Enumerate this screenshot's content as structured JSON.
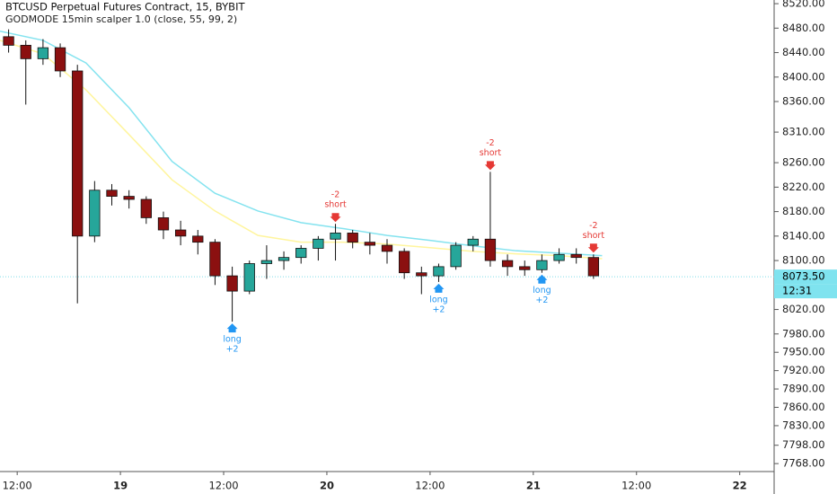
{
  "chart_data": {
    "type": "candlestick",
    "title": "BTCUSD Perpetual Futures Contract, 15, BYBIT",
    "subtitle": "GODMODE 15min scalper 1.0  (close, 55, 99, 2)",
    "up_color": "#26a69a",
    "down_color": "#8b1010",
    "x": [
      11,
      13,
      15,
      17,
      19,
      21,
      23,
      25,
      27,
      29,
      31,
      33,
      35,
      37,
      39,
      41,
      43,
      45,
      47,
      49,
      51,
      53,
      55,
      57,
      59,
      61,
      63,
      65,
      67,
      69,
      71,
      73,
      75,
      77,
      79
    ],
    "open": [
      8466,
      8452,
      8430,
      8448,
      8410,
      8140,
      8215,
      8205,
      8200,
      8170,
      8150,
      8140,
      8130,
      8075,
      8050,
      8095,
      8100,
      8105,
      8120,
      8135,
      8145,
      8130,
      8125,
      8115,
      8080,
      8075,
      8090,
      8125,
      8135,
      8100,
      8090,
      8085,
      8100,
      8110,
      8105
    ],
    "high": [
      8478,
      8460,
      8462,
      8455,
      8420,
      8230,
      8225,
      8215,
      8205,
      8180,
      8165,
      8150,
      8135,
      8090,
      8100,
      8125,
      8115,
      8125,
      8140,
      8160,
      8150,
      8145,
      8135,
      8120,
      8090,
      8095,
      8130,
      8140,
      8245,
      8110,
      8100,
      8110,
      8120,
      8120,
      8110
    ],
    "low": [
      8440,
      8355,
      8420,
      8400,
      8030,
      8130,
      8190,
      8185,
      8160,
      8135,
      8125,
      8110,
      8060,
      8000,
      8045,
      8070,
      8085,
      8095,
      8100,
      8100,
      8120,
      8110,
      8095,
      8070,
      8045,
      8065,
      8085,
      8115,
      8090,
      8075,
      8075,
      8080,
      8095,
      8095,
      8070
    ],
    "close": [
      8452,
      8430,
      8448,
      8410,
      8140,
      8215,
      8205,
      8200,
      8170,
      8150,
      8140,
      8130,
      8075,
      8050,
      8095,
      8100,
      8105,
      8120,
      8135,
      8145,
      8130,
      8125,
      8115,
      8080,
      8075,
      8090,
      8125,
      8135,
      8100,
      8090,
      8085,
      8100,
      8110,
      8105,
      8075
    ],
    "series": [
      {
        "color": "#84e3ef",
        "x": [
          10,
          15,
          20,
          25,
          30,
          35,
          40,
          45,
          50,
          55,
          60,
          65,
          70,
          75,
          80
        ],
        "values": [
          8475,
          8460,
          8423,
          8350,
          8262,
          8210,
          8181,
          8162,
          8152,
          8141,
          8133,
          8124,
          8116,
          8112,
          8108
        ]
      },
      {
        "color": "#fff59d",
        "x": [
          10,
          15,
          20,
          25,
          30,
          35,
          40,
          45,
          50,
          55,
          60,
          65,
          70,
          75,
          80
        ],
        "values": [
          8460,
          8438,
          8379,
          8306,
          8232,
          8181,
          8141,
          8130,
          8130,
          8127,
          8121,
          8115,
          8111,
          8108,
          8103
        ]
      }
    ],
    "signals": [
      {
        "x": 37,
        "direction": "up",
        "color": "#2196f3",
        "lines": [
          "long",
          "+2"
        ]
      },
      {
        "x": 49,
        "direction": "down",
        "color": "#e53935",
        "lines": [
          "-2",
          "short"
        ]
      },
      {
        "x": 61,
        "direction": "up",
        "color": "#2196f3",
        "lines": [
          "long",
          "+2"
        ]
      },
      {
        "x": 67,
        "direction": "down",
        "color": "#e53935",
        "lines": [
          "-2",
          "short"
        ]
      },
      {
        "x": 73,
        "direction": "up",
        "color": "#2196f3",
        "lines": [
          "long",
          "+2"
        ]
      },
      {
        "x": 79,
        "direction": "down",
        "color": "#e53935",
        "lines": [
          "-2",
          "short"
        ]
      }
    ],
    "last_price": {
      "value": 8073.5,
      "label": "8073.50"
    },
    "countdown": "12:31",
    "xlim": [
      10,
      100
    ],
    "xticks": [
      {
        "value": 12,
        "label": "12:00"
      },
      {
        "value": 24,
        "label": "19"
      },
      {
        "value": 36,
        "label": "12:00"
      },
      {
        "value": 48,
        "label": "20"
      },
      {
        "value": 60,
        "label": "12:00"
      },
      {
        "value": 72,
        "label": "21"
      },
      {
        "value": 84,
        "label": "12:00"
      },
      {
        "value": 96,
        "label": "22"
      }
    ],
    "ylim": [
      7755,
      8526
    ],
    "yticks": [
      {
        "value": 8520,
        "label": "8520.00"
      },
      {
        "value": 8480,
        "label": "8480.00"
      },
      {
        "value": 8440,
        "label": "8440.00"
      },
      {
        "value": 8400,
        "label": "8400.00"
      },
      {
        "value": 8360,
        "label": "8360.00"
      },
      {
        "value": 8310,
        "label": "8310.00"
      },
      {
        "value": 8260,
        "label": "8260.00"
      },
      {
        "value": 8220,
        "label": "8220.00"
      },
      {
        "value": 8180,
        "label": "8180.00"
      },
      {
        "value": 8140,
        "label": "8140.00"
      },
      {
        "value": 8100,
        "label": "8100.00"
      },
      {
        "value": 8020,
        "label": "8020.00"
      },
      {
        "value": 7980,
        "label": "7980.00"
      },
      {
        "value": 7950,
        "label": "7950.00"
      },
      {
        "value": 7920,
        "label": "7920.00"
      },
      {
        "value": 7890,
        "label": "7890.00"
      },
      {
        "value": 7860,
        "label": "7860.00"
      },
      {
        "value": 7830,
        "label": "7830.00"
      },
      {
        "value": 7798,
        "label": "7798.00"
      },
      {
        "value": 7768,
        "label": "7768.00"
      }
    ]
  }
}
